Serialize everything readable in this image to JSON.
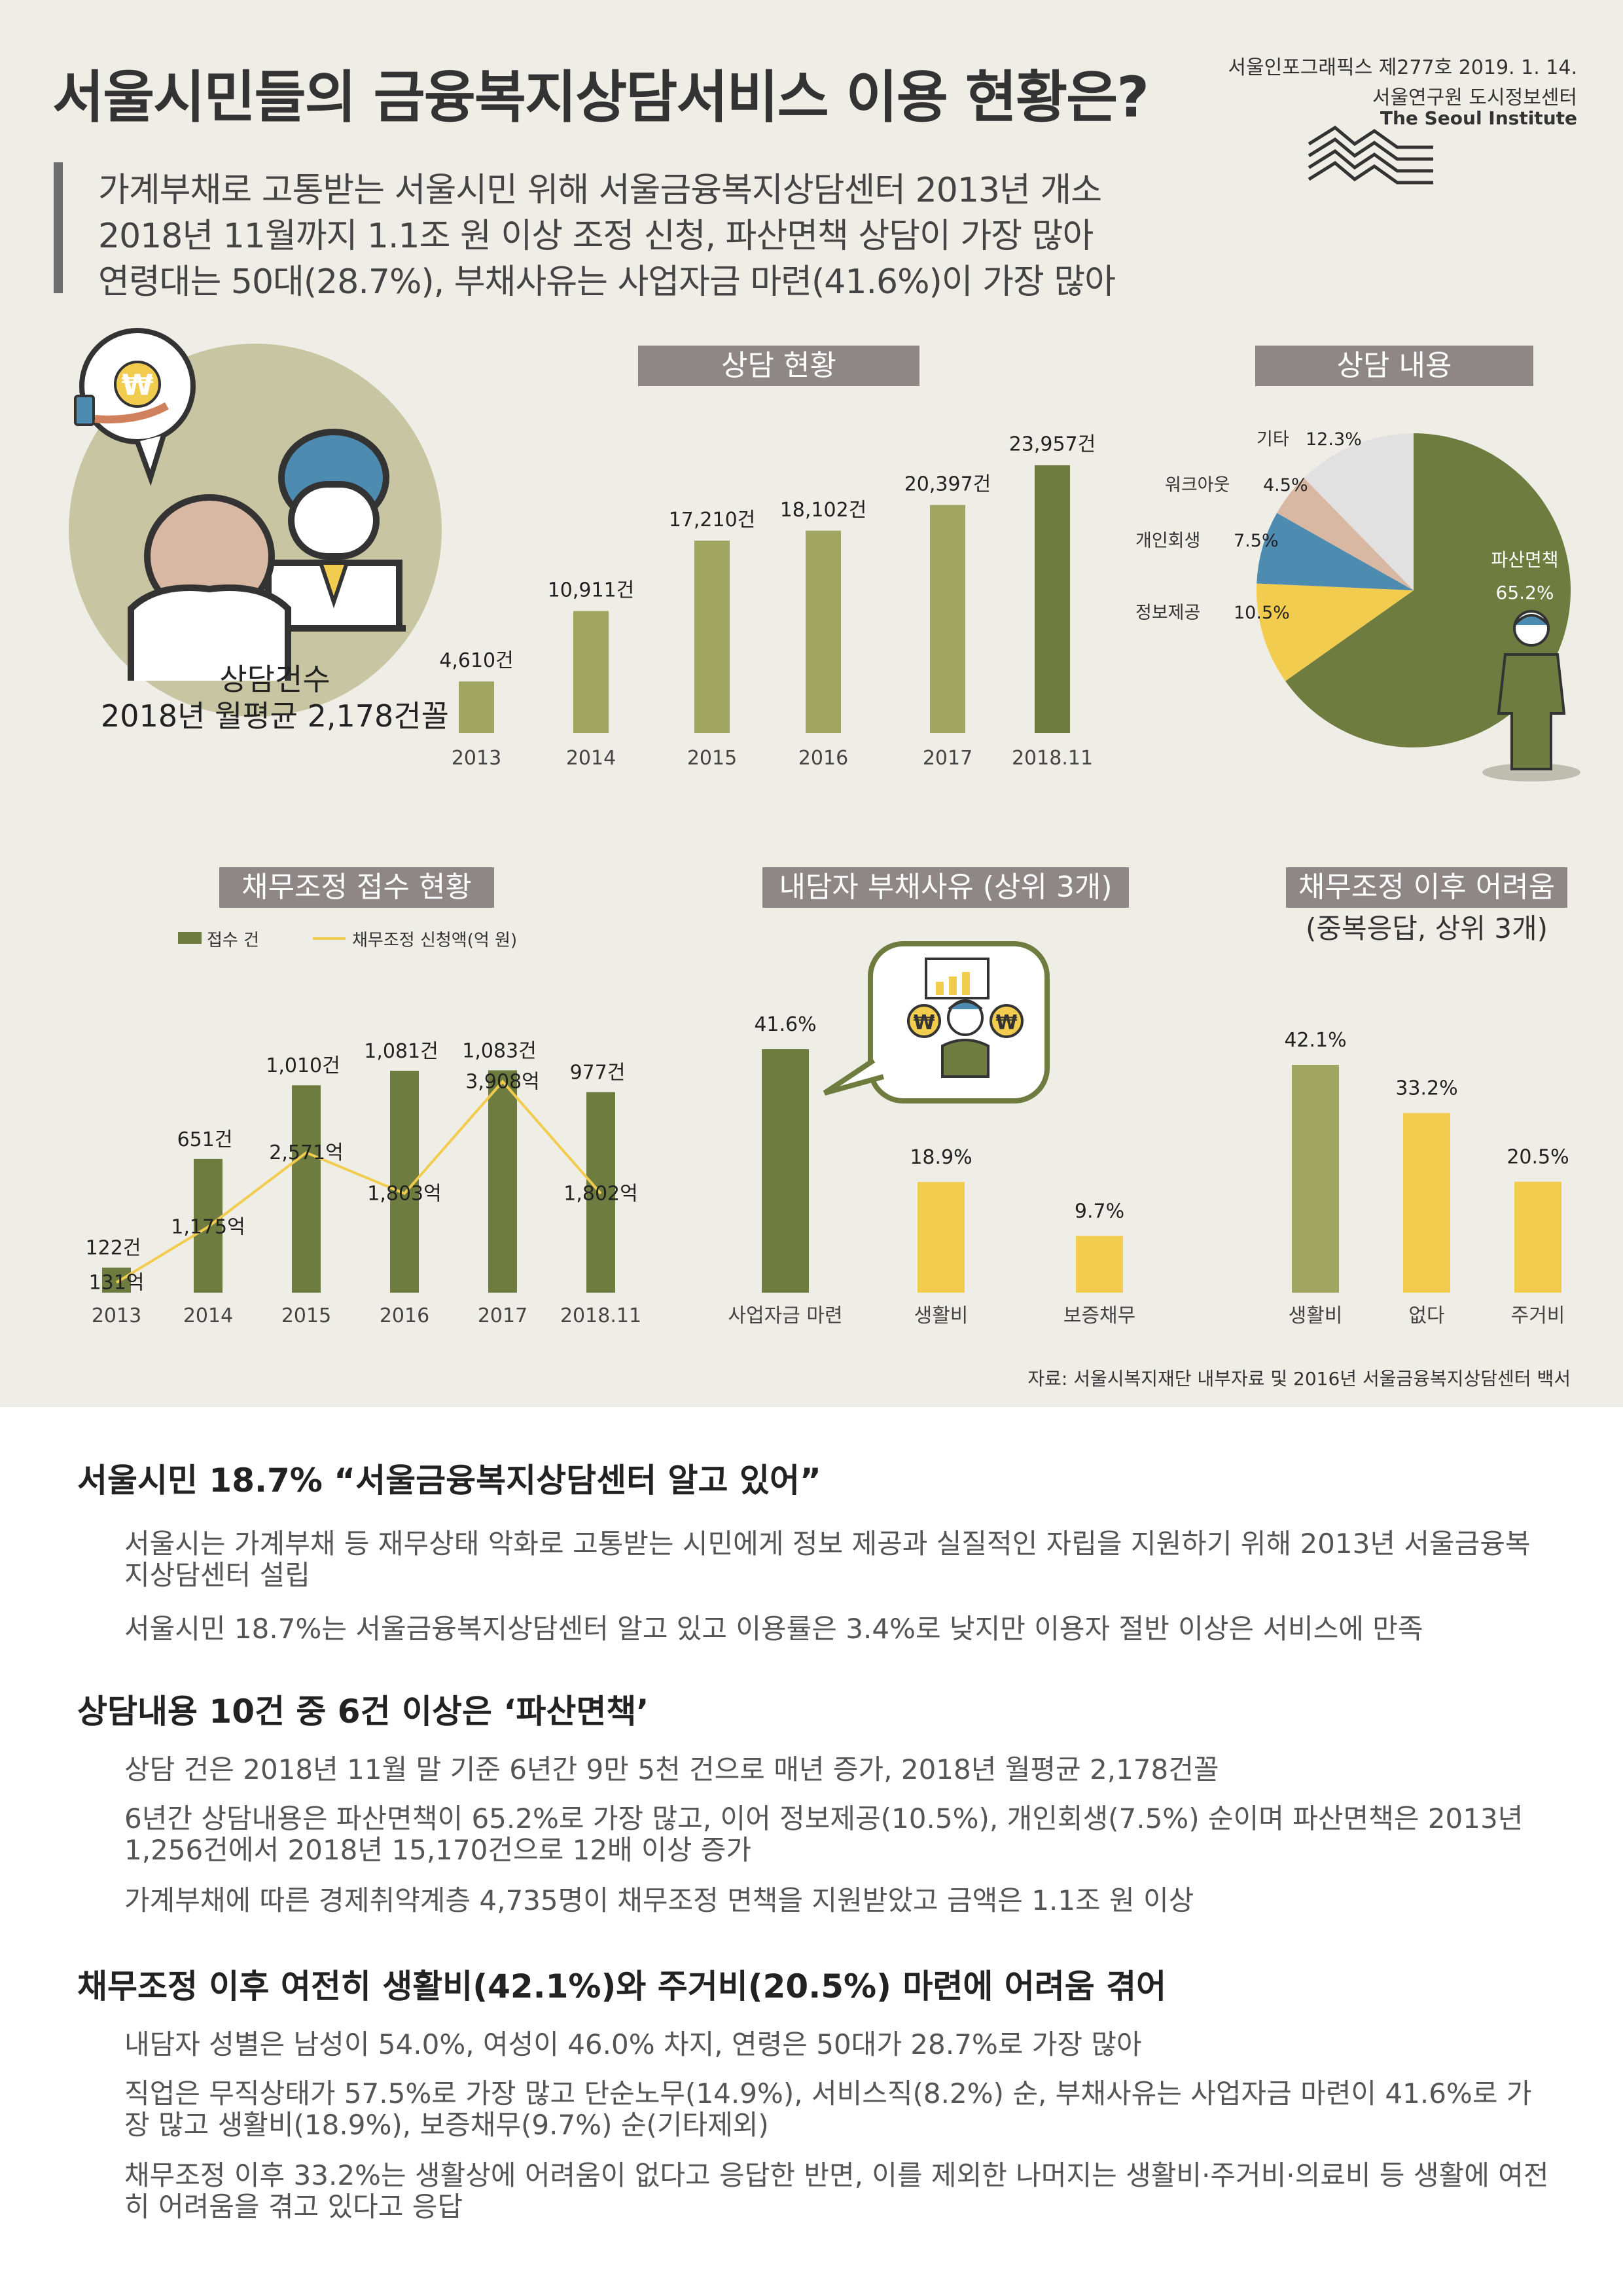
{
  "title": "서울시민들의 금융복지상담서비스 이용 현황은?",
  "issue": "서울인포그래픽스 제277호 2019. 1. 14.",
  "org_kr": "서울연구원 도시정보센터",
  "org_en": "The Seoul Institute",
  "subtitle": [
    "가계부채로 고통받는 서울시민 위해 서울금융복지상담센터 2013년 개소",
    "2018년 11월까지 1.1조 원 이상 조정 신청, 파산면책 상담이 가장 많아",
    "연령대는 50대(28.7%), 부채사유는 사업자금 마련(41.6%)이 가장 많아"
  ],
  "consult_note": {
    "line1": "상담건수",
    "line2": "2018년 월평균 2,178건꼴"
  },
  "won_symbol": "₩",
  "colors": {
    "olive": "#6e7c40",
    "light_olive": "#a0a561",
    "yellow": "#f2cc4e",
    "blue": "#4d8bb0",
    "pink": "#d9b8a3",
    "gray": "#e1e1e1",
    "label_bg": "#8e8785"
  },
  "chart_data": [
    {
      "type": "bar",
      "title": "상담 현황",
      "categories": [
        "2013",
        "2014",
        "2015",
        "2016",
        "2017",
        "2018.11"
      ],
      "values": [
        4610,
        10911,
        17210,
        18102,
        20397,
        23957
      ],
      "value_labels": [
        "4,610건",
        "10,911건",
        "17,210건",
        "18,102건",
        "20,397건",
        "23,957건"
      ]
    },
    {
      "type": "pie",
      "title": "상담 내용",
      "slices": [
        {
          "label": "파산면책",
          "value": 65.2,
          "text": "65.2%",
          "color": "#6e7c40"
        },
        {
          "label": "정보제공",
          "value": 10.5,
          "text": "10.5%",
          "color": "#f2cc4e"
        },
        {
          "label": "개인회생",
          "value": 7.5,
          "text": "7.5%",
          "color": "#4d8bb0"
        },
        {
          "label": "워크아웃",
          "value": 4.5,
          "text": "4.5%",
          "color": "#d9b8a3"
        },
        {
          "label": "기타",
          "value": 12.3,
          "text": "12.3%",
          "color": "#e1e1e1"
        }
      ]
    },
    {
      "type": "bar",
      "title": "채무조정 접수 현황",
      "categories": [
        "2013",
        "2014",
        "2015",
        "2016",
        "2017",
        "2018.11"
      ],
      "series": [
        {
          "name": "접수 건",
          "kind": "bar",
          "values": [
            122,
            651,
            1010,
            1081,
            1083,
            977
          ],
          "labels": [
            "122건",
            "651건",
            "1,010건",
            "1,081건",
            "1,083건",
            "977건"
          ]
        },
        {
          "name": "채무조정 신청액(억 원)",
          "kind": "line",
          "values": [
            131,
            1175,
            2571,
            1803,
            3908,
            1802
          ],
          "labels": [
            "131억",
            "1,175억",
            "2,571억",
            "1,803억",
            "3,908억",
            "1,802억"
          ]
        }
      ]
    },
    {
      "type": "bar",
      "title": "내담자 부채사유 (상위 3개)",
      "categories": [
        "사업자금 마련",
        "생활비",
        "보증채무"
      ],
      "values": [
        41.6,
        18.9,
        9.7
      ],
      "value_labels": [
        "41.6%",
        "18.9%",
        "9.7%"
      ]
    },
    {
      "type": "bar",
      "title": "채무조정 이후 어려움",
      "subtitle": "(중복응답, 상위 3개)",
      "categories": [
        "생활비",
        "없다",
        "주거비"
      ],
      "values": [
        42.1,
        33.2,
        20.5
      ],
      "value_labels": [
        "42.1%",
        "33.2%",
        "20.5%"
      ]
    }
  ],
  "source": "자료: 서울시복지재단 내부자료 및 2016년 서울금융복지상담센터 백서",
  "sections": [
    {
      "heading": "서울시민 18.7% “서울금융복지상담센터 알고 있어”",
      "paragraphs": [
        "서울시는 가계부채 등 재무상태 악화로 고통받는 시민에게 정보 제공과 실질적인 자립을 지원하기 위해 2013년 서울금융복지상담센터 설립",
        "서울시민 18.7%는 서울금융복지상담센터 알고 있고 이용률은 3.4%로 낮지만 이용자 절반 이상은 서비스에 만족"
      ]
    },
    {
      "heading": "상담내용 10건 중 6건 이상은 ‘파산면책’",
      "paragraphs": [
        "상담 건은 2018년 11월 말 기준 6년간 9만 5천 건으로 매년 증가, 2018년 월평균 2,178건꼴",
        "6년간 상담내용은 파산면책이 65.2%로 가장 많고, 이어 정보제공(10.5%), 개인회생(7.5%) 순이며 파산면책은 2013년 1,256건에서 2018년 15,170건으로 12배 이상 증가",
        "가계부채에 따른 경제취약계층 4,735명이 채무조정 면책을 지원받았고 금액은 1.1조 원 이상"
      ]
    },
    {
      "heading": "채무조정 이후 여전히 생활비(42.1%)와 주거비(20.5%) 마련에 어려움 겪어",
      "paragraphs": [
        "내담자 성별은 남성이 54.0%, 여성이 46.0% 차지, 연령은 50대가 28.7%로 가장 많아",
        "직업은 무직상태가 57.5%로 가장 많고 단순노무(14.9%), 서비스직(8.2%) 순, 부채사유는 사업자금 마련이 41.6%로 가장 많고 생활비(18.9%), 보증채무(9.7%) 순(기타제외)",
        "채무조정 이후 33.2%는 생활상에 어려움이 없다고 응답한 반면, 이를 제외한 나머지는 생활비·주거비·의료비 등 생활에 여전히 어려움을 겪고 있다고 응답"
      ]
    }
  ]
}
